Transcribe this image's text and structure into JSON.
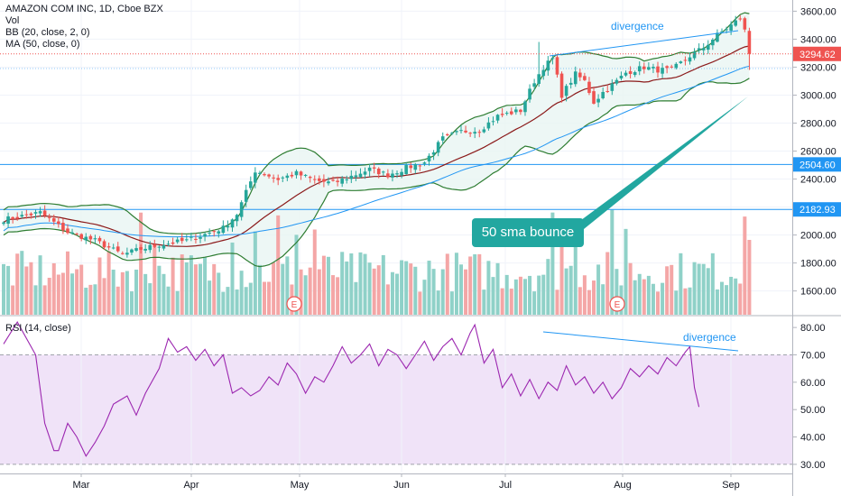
{
  "header": {
    "symbol_line": "AMAZON COM INC, 1D, Cboe BZX",
    "indicators": [
      "Vol",
      "BB (20, close, 2, 0)",
      "MA (50, close, 0)"
    ],
    "rsi_label": "RSI (14, close)"
  },
  "annotations": {
    "price_divergence": "divergence",
    "rsi_divergence": "divergence",
    "callout": "50 sma bounce"
  },
  "colors": {
    "up": "#26a69a",
    "down": "#ef5350",
    "vol_up": "#8fd1c8",
    "vol_down": "#f4a6a6",
    "bb_line": "#2e7d32",
    "bb_fill": "#e8f5f3",
    "basis": "#8b1a1a",
    "ma50": "#2196f3",
    "rsi_line": "#9c27b0",
    "rsi_band": "#f0e3f8",
    "callout": "#22a7a0",
    "hline": "#2196f3"
  },
  "chart_data": [
    {
      "type": "candlestick",
      "title": "AMAZON COM INC, 1D, Cboe BZX",
      "x_labels": [
        "Mar",
        "Apr",
        "May",
        "Jun",
        "Jul",
        "Aug",
        "Sep"
      ],
      "y_ticks": [
        1600,
        1800,
        2000,
        2200,
        2400,
        2600,
        2800,
        3000,
        3200,
        3400,
        3600
      ],
      "ylim": [
        1430,
        3680
      ],
      "last_price": "3294.62",
      "horizontal_levels": [
        "2504.60",
        "2182.93"
      ],
      "earnings_markers": [
        "E",
        "E"
      ],
      "close_anchors": [
        [
          0,
          2110
        ],
        [
          8,
          2160
        ],
        [
          14,
          2020
        ],
        [
          20,
          1960
        ],
        [
          26,
          1860
        ],
        [
          30,
          1900
        ],
        [
          34,
          1930
        ],
        [
          40,
          1960
        ],
        [
          48,
          2050
        ],
        [
          51,
          2150
        ],
        [
          55,
          2460
        ],
        [
          60,
          2400
        ],
        [
          64,
          2440
        ],
        [
          68,
          2390
        ],
        [
          72,
          2370
        ],
        [
          76,
          2420
        ],
        [
          80,
          2470
        ],
        [
          84,
          2430
        ],
        [
          88,
          2480
        ],
        [
          92,
          2520
        ],
        [
          96,
          2690
        ],
        [
          100,
          2740
        ],
        [
          104,
          2750
        ],
        [
          108,
          2850
        ],
        [
          113,
          2890
        ],
        [
          116,
          3100
        ],
        [
          118,
          3200
        ],
        [
          120,
          3260
        ],
        [
          122,
          3000
        ],
        [
          125,
          3150
        ],
        [
          127,
          3100
        ],
        [
          129,
          2950
        ],
        [
          131,
          3020
        ],
        [
          134,
          3100
        ],
        [
          136,
          3160
        ],
        [
          140,
          3200
        ],
        [
          143,
          3180
        ],
        [
          146,
          3180
        ],
        [
          150,
          3280
        ],
        [
          153,
          3340
        ],
        [
          156,
          3430
        ],
        [
          159,
          3500
        ],
        [
          161,
          3550
        ],
        [
          162,
          3460
        ],
        [
          163,
          3295
        ]
      ],
      "bollinger": {
        "period": 20,
        "std": 2
      },
      "ma_period": 50,
      "volume_axis": [
        1430,
        1900
      ]
    },
    {
      "type": "line",
      "title": "RSI (14, close)",
      "y_ticks": [
        30,
        40,
        50,
        60,
        70,
        80
      ],
      "ylim": [
        27,
        84
      ],
      "band": [
        30,
        70
      ],
      "points": [
        [
          0,
          74
        ],
        [
          3,
          82
        ],
        [
          7,
          70
        ],
        [
          9,
          45
        ],
        [
          11,
          35
        ],
        [
          12,
          35
        ],
        [
          14,
          45
        ],
        [
          16,
          40
        ],
        [
          18,
          33
        ],
        [
          20,
          38
        ],
        [
          22,
          44
        ],
        [
          24,
          52
        ],
        [
          27,
          55
        ],
        [
          29,
          48
        ],
        [
          31,
          56
        ],
        [
          34,
          65
        ],
        [
          36,
          76
        ],
        [
          38,
          71
        ],
        [
          40,
          73
        ],
        [
          42,
          68
        ],
        [
          44,
          72
        ],
        [
          46,
          66
        ],
        [
          48,
          70
        ],
        [
          50,
          56
        ],
        [
          52,
          58
        ],
        [
          54,
          55
        ],
        [
          56,
          57
        ],
        [
          58,
          62
        ],
        [
          60,
          59
        ],
        [
          62,
          67
        ],
        [
          64,
          63
        ],
        [
          66,
          56
        ],
        [
          68,
          62
        ],
        [
          70,
          60
        ],
        [
          72,
          66
        ],
        [
          74,
          73
        ],
        [
          76,
          67
        ],
        [
          78,
          70
        ],
        [
          80,
          74
        ],
        [
          82,
          66
        ],
        [
          84,
          72
        ],
        [
          86,
          70
        ],
        [
          88,
          65
        ],
        [
          90,
          70
        ],
        [
          92,
          75
        ],
        [
          94,
          68
        ],
        [
          96,
          73
        ],
        [
          98,
          76
        ],
        [
          100,
          70
        ],
        [
          102,
          78
        ],
        [
          103,
          81
        ],
        [
          105,
          67
        ],
        [
          107,
          72
        ],
        [
          109,
          58
        ],
        [
          111,
          63
        ],
        [
          113,
          55
        ],
        [
          115,
          61
        ],
        [
          117,
          54
        ],
        [
          119,
          60
        ],
        [
          121,
          57
        ],
        [
          123,
          66
        ],
        [
          125,
          59
        ],
        [
          127,
          62
        ],
        [
          129,
          56
        ],
        [
          131,
          60
        ],
        [
          133,
          54
        ],
        [
          135,
          58
        ],
        [
          137,
          65
        ],
        [
          139,
          62
        ],
        [
          141,
          66
        ],
        [
          143,
          63
        ],
        [
          145,
          69
        ],
        [
          147,
          66
        ],
        [
          149,
          71
        ],
        [
          150,
          73
        ],
        [
          151,
          58
        ],
        [
          152,
          51
        ]
      ]
    }
  ]
}
